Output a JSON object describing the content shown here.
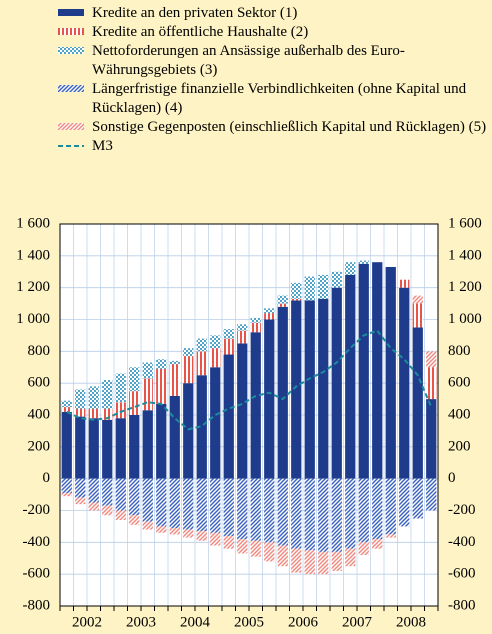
{
  "chart_data": {
    "type": "bar",
    "categories": [
      null,
      "2002",
      null,
      null,
      null,
      "2003",
      null,
      null,
      null,
      "2004",
      null,
      null,
      null,
      "2005",
      null,
      null,
      null,
      "2006",
      null,
      null,
      null,
      "2007",
      null,
      null,
      null,
      "2008",
      null,
      null
    ],
    "stacked": true,
    "series": [
      {
        "name": "Kredite an den privaten Sektor (1)",
        "color": "#1f3c8c",
        "pattern": "solid",
        "values": [
          420,
          390,
          380,
          370,
          380,
          400,
          430,
          470,
          520,
          600,
          650,
          700,
          780,
          850,
          920,
          1000,
          1080,
          1120,
          1120,
          1130,
          1200,
          1280,
          1350,
          1360,
          1330,
          1200,
          950,
          500
        ]
      },
      {
        "name": "Kredite an öffentliche Haushalte (2)",
        "color": "#e8534a",
        "pattern": "vertical",
        "values": [
          30,
          50,
          60,
          70,
          100,
          150,
          200,
          220,
          200,
          170,
          150,
          120,
          100,
          80,
          60,
          40,
          20,
          10,
          0,
          0,
          0,
          0,
          0,
          0,
          0,
          50,
          150,
          200
        ]
      },
      {
        "name": "Nettoforderungen an Ansässige außerhalb des Euro-Währungsgebiets (3)",
        "color": "#4fa3c8",
        "pattern": "dots",
        "values": [
          40,
          120,
          140,
          180,
          180,
          150,
          100,
          60,
          20,
          50,
          80,
          80,
          60,
          40,
          30,
          30,
          50,
          100,
          150,
          150,
          100,
          80,
          20,
          0,
          0,
          0,
          0,
          0
        ]
      },
      {
        "name": "Längerfristige finanzielle Verbindlichkeiten (ohne Kapital und Rücklagen) (4)",
        "color": "#3d64c0",
        "pattern": "diagonal",
        "values": [
          -90,
          -120,
          -150,
          -170,
          -200,
          -230,
          -270,
          -300,
          -310,
          -320,
          -330,
          -340,
          -360,
          -380,
          -390,
          -400,
          -420,
          -440,
          -450,
          -460,
          -460,
          -440,
          -400,
          -380,
          -350,
          -300,
          -250,
          -200
        ]
      },
      {
        "name": "Sonstige Gegenposten (einschließlich Kapital und Rücklagen) (5)",
        "color": "#f08a80",
        "pattern": "diagonal",
        "values": [
          -20,
          -40,
          -50,
          -60,
          -60,
          -60,
          -50,
          -40,
          -40,
          -50,
          -60,
          -80,
          -80,
          -90,
          -100,
          -120,
          -130,
          -150,
          -150,
          -140,
          -120,
          -110,
          -80,
          -60,
          -20,
          0,
          50,
          100
        ]
      },
      {
        "name": "M3",
        "color": "#1b8c9c",
        "type": "line",
        "dash": true,
        "values": [
          420,
          380,
          370,
          380,
          420,
          450,
          480,
          470,
          380,
          310,
          330,
          400,
          440,
          470,
          520,
          540,
          500,
          580,
          630,
          670,
          730,
          820,
          900,
          930,
          820,
          750,
          650,
          450
        ]
      }
    ],
    "ylim": [
      -800,
      1600
    ],
    "yticks": [
      -800,
      -600,
      -400,
      -200,
      0,
      200,
      400,
      600,
      800,
      {
        "value": 1000,
        "label": "1 000"
      },
      {
        "value": 1200,
        "label": "1 200"
      },
      {
        "value": 1400,
        "label": "1 400"
      },
      {
        "value": 1600,
        "label": "1 600"
      }
    ],
    "grid": true,
    "background": "#fdf3c4"
  }
}
